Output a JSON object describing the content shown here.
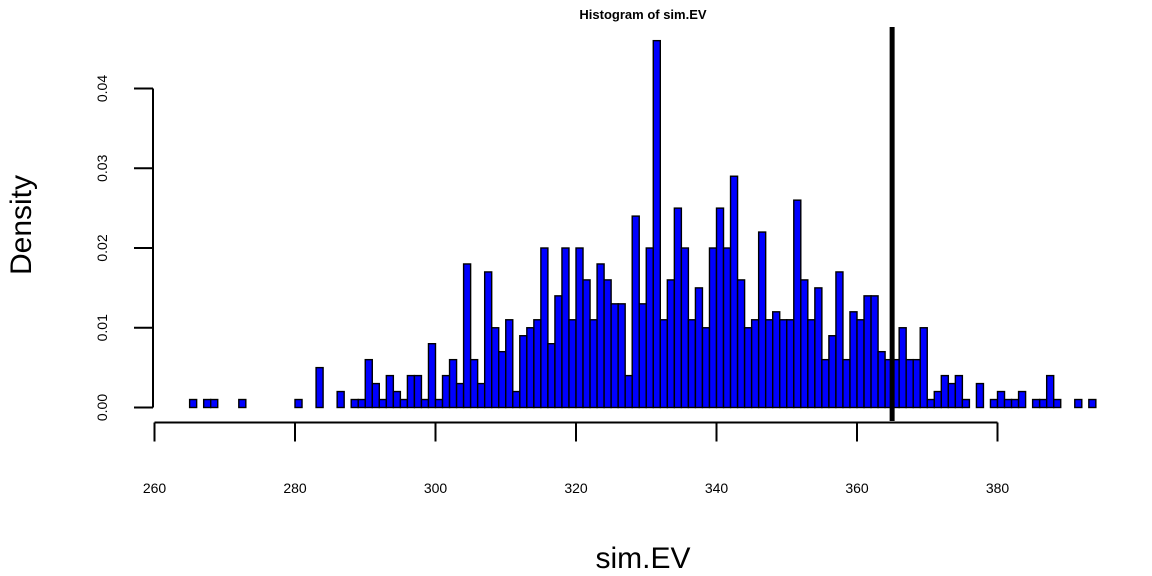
{
  "chart_data": {
    "type": "histogram",
    "title": "Histogram of sim.EV",
    "xlabel": "sim.EV",
    "ylabel": "Density",
    "xlim": [
      260,
      380
    ],
    "ylim": [
      0,
      0.04
    ],
    "x_ticks": [
      260,
      280,
      300,
      320,
      340,
      360,
      380
    ],
    "y_ticks": [
      0,
      0.01,
      0.02,
      0.03,
      0.04
    ],
    "x_tick_labels": [
      "260",
      "280",
      "300",
      "320",
      "340",
      "360",
      "380"
    ],
    "y_tick_labels": [
      "0.00",
      "0.01",
      "0.02",
      "0.03",
      "0.04"
    ],
    "bin_start": 265,
    "bin_width": 1,
    "bar_color": "#0000ff",
    "density": [
      0.001,
      0,
      0.001,
      0.001,
      0,
      0,
      0,
      0.001,
      0,
      0,
      0,
      0,
      0,
      0,
      0,
      0.001,
      0,
      0,
      0.005,
      0,
      0,
      0.002,
      0,
      0.001,
      0.001,
      0.006,
      0.003,
      0.001,
      0.004,
      0.002,
      0.001,
      0.004,
      0.004,
      0.001,
      0.008,
      0.001,
      0.004,
      0.006,
      0.003,
      0.018,
      0.006,
      0.003,
      0.017,
      0.01,
      0.007,
      0.011,
      0.002,
      0.009,
      0.01,
      0.011,
      0.02,
      0.008,
      0.014,
      0.02,
      0.011,
      0.02,
      0.016,
      0.011,
      0.018,
      0.016,
      0.013,
      0.013,
      0.004,
      0.024,
      0.013,
      0.02,
      0.046,
      0.011,
      0.016,
      0.025,
      0.02,
      0.011,
      0.015,
      0.01,
      0.02,
      0.025,
      0.02,
      0.029,
      0.016,
      0.01,
      0.011,
      0.022,
      0.011,
      0.012,
      0.011,
      0.011,
      0.026,
      0.016,
      0.011,
      0.015,
      0.006,
      0.009,
      0.017,
      0.006,
      0.012,
      0.011,
      0.014,
      0.014,
      0.007,
      0.006,
      0.006,
      0.01,
      0.006,
      0.006,
      0.01,
      0.001,
      0.002,
      0.004,
      0.003,
      0.004,
      0.001,
      0,
      0.003,
      0,
      0.001,
      0.002,
      0.001,
      0.001,
      0.002,
      0,
      0.001,
      0.001,
      0.004,
      0.001,
      0,
      0,
      0.001,
      0,
      0.001
    ],
    "vline_x": 365
  }
}
